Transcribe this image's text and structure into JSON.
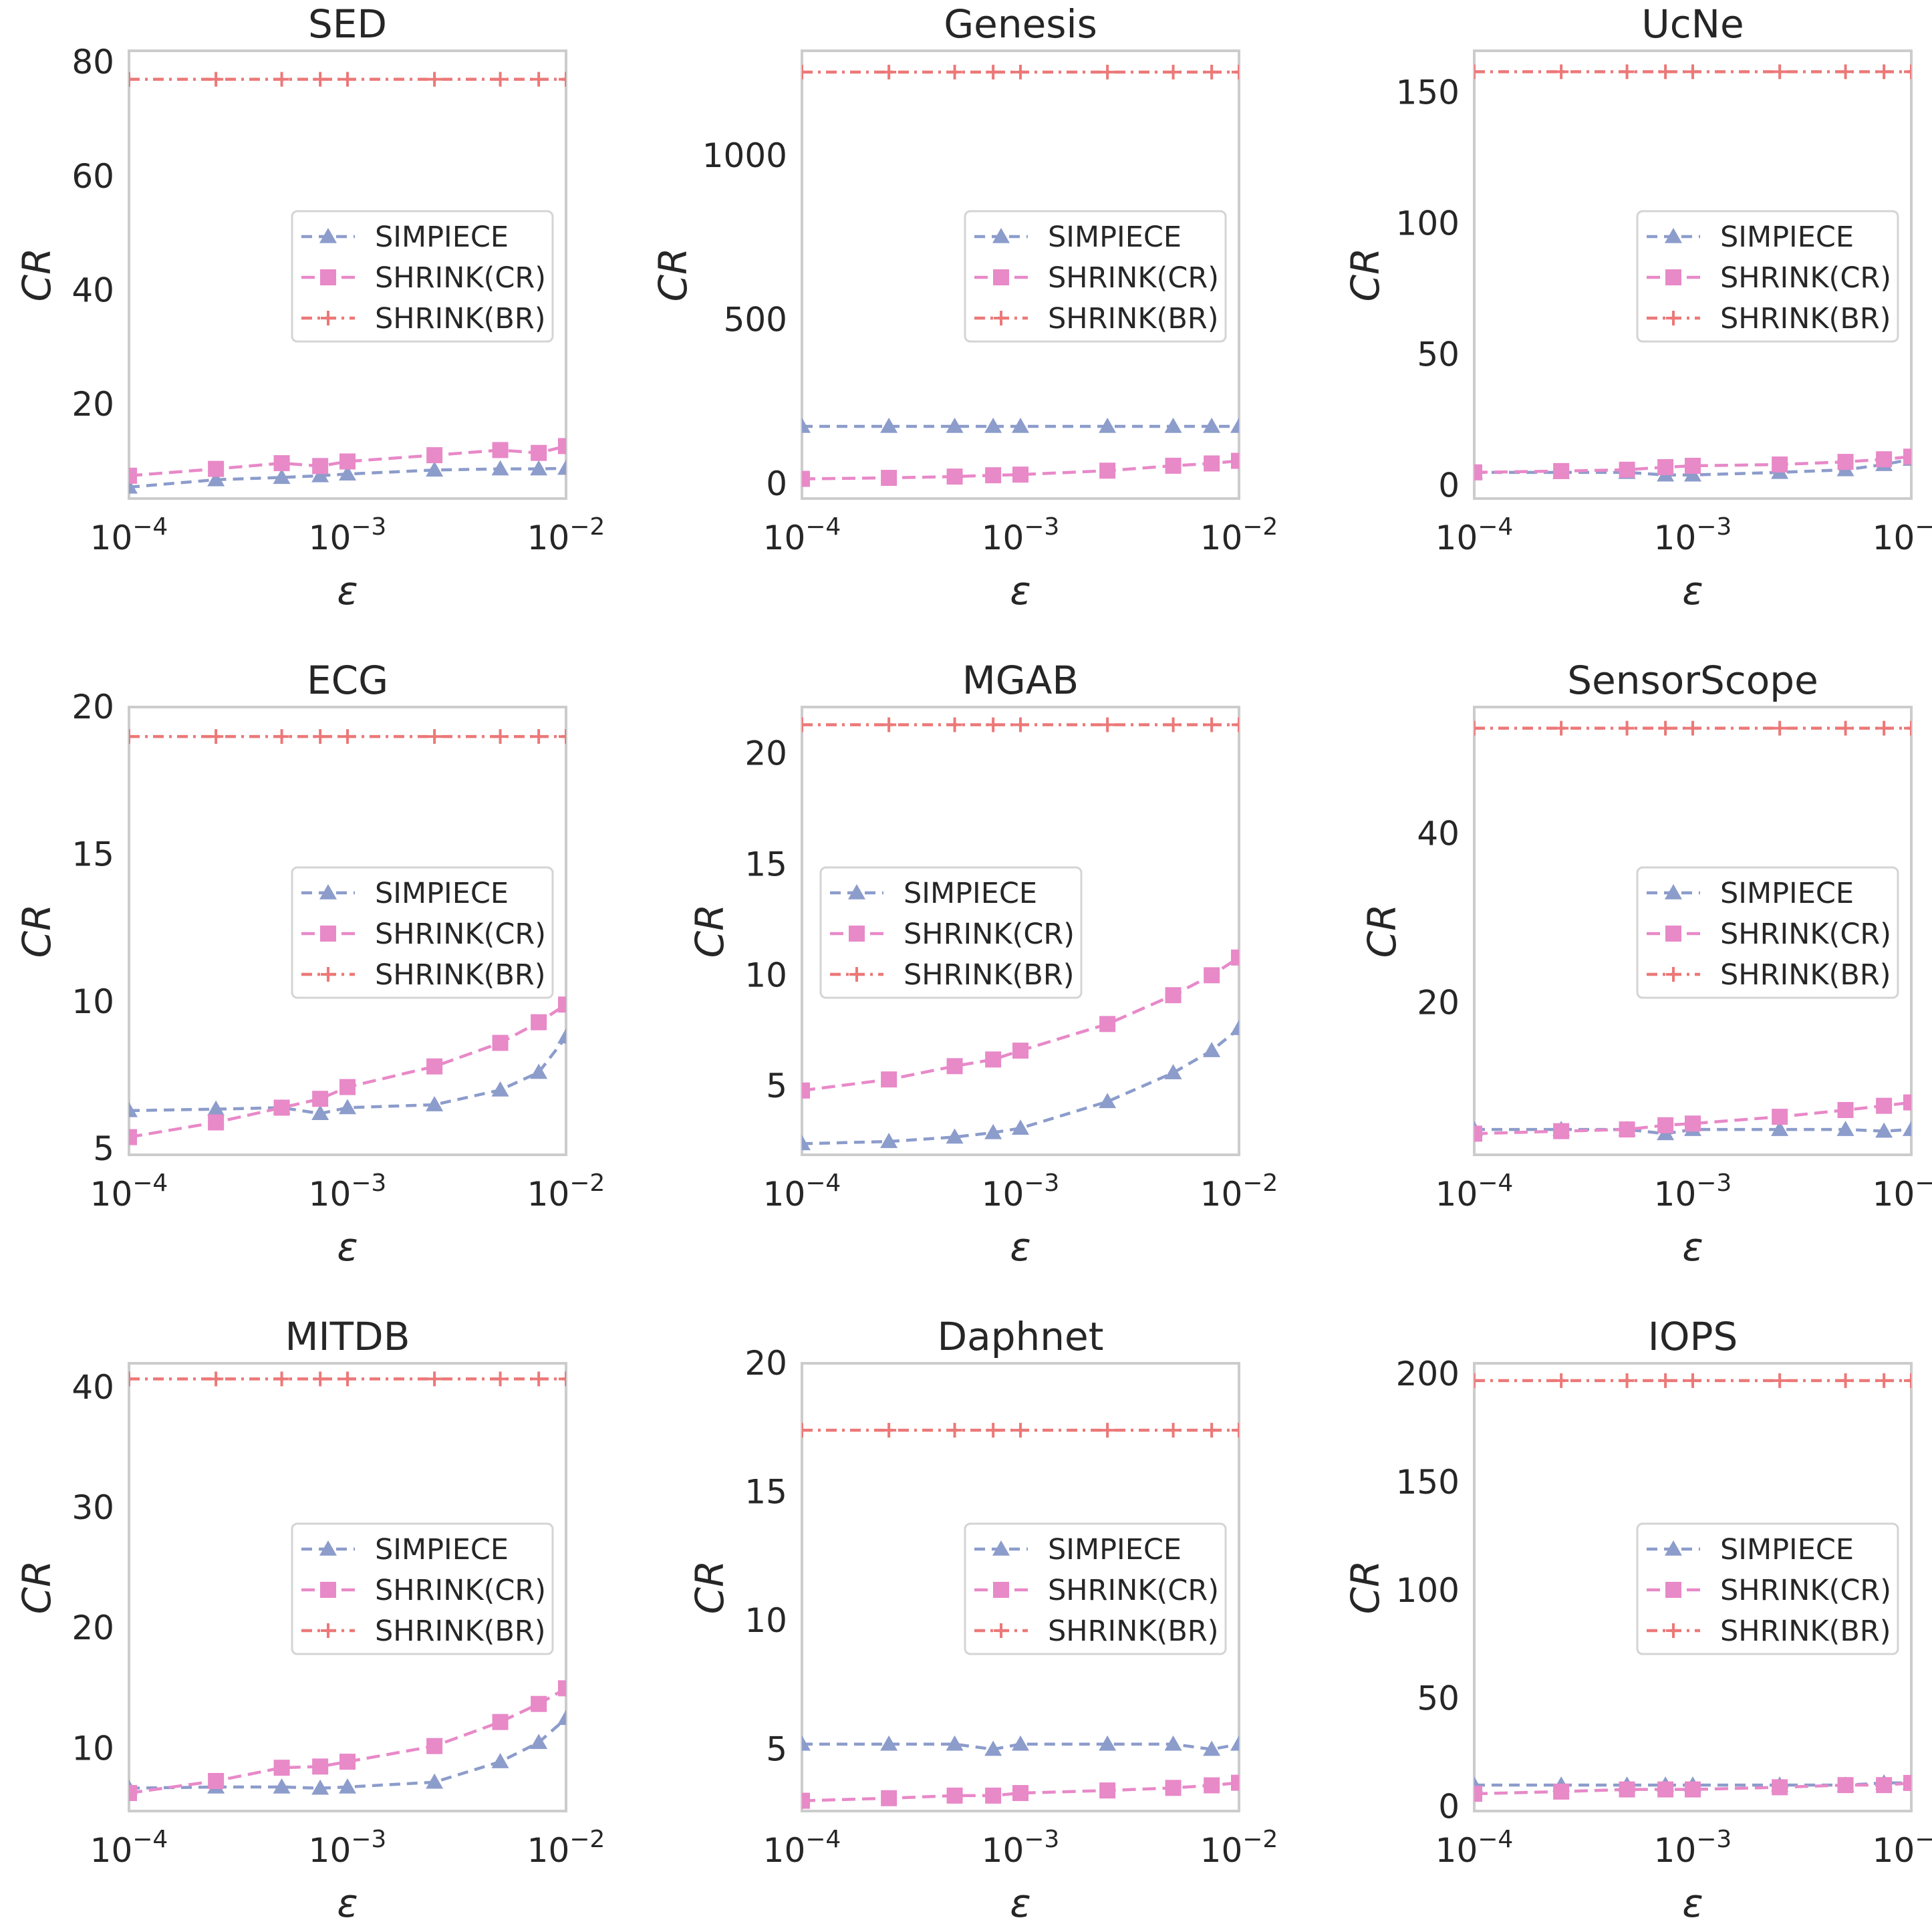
{
  "colors": {
    "simpiece": "#8c9ccb",
    "shrink_cr": "#e889c8",
    "shrink_br": "#ec7878",
    "frame": "#cccccc"
  },
  "chart_data": [
    {
      "type": "line",
      "title": "SED",
      "xlabel": "ε",
      "ylabel": "CR",
      "xscale": "log",
      "xlim": [
        0.0001,
        0.01
      ],
      "ylim": [
        3.5,
        82
      ],
      "yticks": [
        20,
        40,
        60,
        80
      ],
      "ytick_labels": [
        "20",
        "40",
        "60",
        "80"
      ],
      "legend_position": "center-right",
      "x": [
        0.0001,
        0.00025,
        0.0005,
        0.00075,
        0.001,
        0.0025,
        0.005,
        0.0075,
        0.01
      ],
      "series": [
        {
          "name": "SIMPIECE",
          "marker": "triangle",
          "values": [
            5.5,
            6.8,
            7.2,
            7.5,
            7.8,
            8.5,
            8.7,
            8.7,
            8.8
          ]
        },
        {
          "name": "SHRINK(CR)",
          "marker": "square",
          "values": [
            7.5,
            8.7,
            9.7,
            9.2,
            10.0,
            11.1,
            12.0,
            11.5,
            12.7
          ]
        },
        {
          "name": "SHRINK(BR)",
          "marker": "plus",
          "values": [
            77,
            77,
            77,
            77,
            77,
            77,
            77,
            77,
            77
          ]
        }
      ]
    },
    {
      "type": "line",
      "title": "Genesis",
      "xlabel": "ε",
      "ylabel": "CR",
      "xscale": "log",
      "xlim": [
        0.0001,
        0.01
      ],
      "ylim": [
        -45,
        1320
      ],
      "yticks": [
        0,
        500,
        1000
      ],
      "ytick_labels": [
        "0",
        "500",
        "1000"
      ],
      "legend_position": "center-right",
      "x": [
        0.0001,
        0.00025,
        0.0005,
        0.00075,
        0.001,
        0.0025,
        0.005,
        0.0075,
        0.01
      ],
      "series": [
        {
          "name": "SIMPIECE",
          "marker": "triangle",
          "values": [
            175,
            175,
            175,
            175,
            175,
            175,
            175,
            175,
            175
          ]
        },
        {
          "name": "SHRINK(CR)",
          "marker": "square",
          "values": [
            15,
            18,
            22,
            26,
            28,
            40,
            55,
            62,
            70
          ]
        },
        {
          "name": "SHRINK(BR)",
          "marker": "plus",
          "values": [
            1255,
            1255,
            1255,
            1255,
            1255,
            1255,
            1255,
            1255,
            1255
          ]
        }
      ]
    },
    {
      "type": "line",
      "title": "UcNe",
      "xlabel": "ε",
      "ylabel": "CR",
      "xscale": "log",
      "xlim": [
        0.0001,
        0.01
      ],
      "ylim": [
        -5,
        166
      ],
      "yticks": [
        0,
        50,
        100,
        150
      ],
      "ytick_labels": [
        "0",
        "50",
        "100",
        "150"
      ],
      "legend_position": "center-right",
      "x": [
        0.0001,
        0.00025,
        0.0005,
        0.00075,
        0.001,
        0.0025,
        0.005,
        0.0075,
        0.01
      ],
      "series": [
        {
          "name": "SIMPIECE",
          "marker": "triangle",
          "values": [
            5,
            5,
            5,
            4,
            4,
            5,
            6,
            8,
            10
          ]
        },
        {
          "name": "SHRINK(CR)",
          "marker": "square",
          "values": [
            5,
            5.5,
            6,
            7,
            7.5,
            8,
            9,
            10,
            11
          ]
        },
        {
          "name": "SHRINK(BR)",
          "marker": "plus",
          "values": [
            158,
            158,
            158,
            158,
            158,
            158,
            158,
            158,
            158
          ]
        }
      ]
    },
    {
      "type": "line",
      "title": "ECG",
      "xlabel": "ε",
      "ylabel": "CR",
      "xscale": "log",
      "xlim": [
        0.0001,
        0.01
      ],
      "ylim": [
        4.8,
        20
      ],
      "yticks": [
        5,
        10,
        15,
        20
      ],
      "ytick_labels": [
        "5",
        "10",
        "15",
        "20"
      ],
      "legend_position": "center-right",
      "x": [
        0.0001,
        0.00025,
        0.0005,
        0.00075,
        0.001,
        0.0025,
        0.005,
        0.0075,
        0.01
      ],
      "series": [
        {
          "name": "SIMPIECE",
          "marker": "triangle",
          "values": [
            6.3,
            6.35,
            6.4,
            6.2,
            6.4,
            6.5,
            7.0,
            7.6,
            8.8
          ]
        },
        {
          "name": "SHRINK(CR)",
          "marker": "square",
          "values": [
            5.4,
            5.9,
            6.4,
            6.7,
            7.1,
            7.8,
            8.6,
            9.3,
            9.9
          ]
        },
        {
          "name": "SHRINK(BR)",
          "marker": "plus",
          "values": [
            19.0,
            19.0,
            19.0,
            19.0,
            19.0,
            19.0,
            19.0,
            19.0,
            19.0
          ]
        }
      ]
    },
    {
      "type": "line",
      "title": "MGAB",
      "xlabel": "ε",
      "ylabel": "CR",
      "xscale": "log",
      "xlim": [
        0.0001,
        0.01
      ],
      "ylim": [
        1.9,
        22.1
      ],
      "yticks": [
        5,
        10,
        15,
        20
      ],
      "ytick_labels": [
        "5",
        "10",
        "15",
        "20"
      ],
      "legend_position": "center-left",
      "x": [
        0.0001,
        0.00025,
        0.0005,
        0.00075,
        0.001,
        0.0025,
        0.005,
        0.0075,
        0.01
      ],
      "series": [
        {
          "name": "SIMPIECE",
          "marker": "triangle",
          "values": [
            2.4,
            2.5,
            2.7,
            2.9,
            3.1,
            4.3,
            5.6,
            6.6,
            7.6
          ]
        },
        {
          "name": "SHRINK(CR)",
          "marker": "square",
          "values": [
            4.8,
            5.3,
            5.9,
            6.2,
            6.6,
            7.8,
            9.1,
            10.0,
            10.8
          ]
        },
        {
          "name": "SHRINK(BR)",
          "marker": "plus",
          "values": [
            21.3,
            21.3,
            21.3,
            21.3,
            21.3,
            21.3,
            21.3,
            21.3,
            21.3
          ]
        }
      ]
    },
    {
      "type": "line",
      "title": "SensorScope",
      "xlabel": "ε",
      "ylabel": "CR",
      "xscale": "log",
      "xlim": [
        0.0001,
        0.01
      ],
      "ylim": [
        2,
        55
      ],
      "yticks": [
        20,
        40
      ],
      "ytick_labels": [
        "20",
        "40"
      ],
      "legend_position": "center-right",
      "x": [
        0.0001,
        0.00025,
        0.0005,
        0.00075,
        0.001,
        0.0025,
        0.005,
        0.0075,
        0.01
      ],
      "series": [
        {
          "name": "SIMPIECE",
          "marker": "triangle",
          "values": [
            5.0,
            5.0,
            5.0,
            4.5,
            5.0,
            5.0,
            5.0,
            4.8,
            5.0
          ]
        },
        {
          "name": "SHRINK(CR)",
          "marker": "square",
          "values": [
            4.5,
            4.8,
            5.0,
            5.5,
            5.7,
            6.5,
            7.3,
            7.8,
            8.2
          ]
        },
        {
          "name": "SHRINK(BR)",
          "marker": "plus",
          "values": [
            52.5,
            52.5,
            52.5,
            52.5,
            52.5,
            52.5,
            52.5,
            52.5,
            52.5
          ]
        }
      ]
    },
    {
      "type": "line",
      "title": "MITDB",
      "xlabel": "ε",
      "ylabel": "CR",
      "xscale": "log",
      "xlim": [
        0.0001,
        0.01
      ],
      "ylim": [
        4.8,
        42
      ],
      "yticks": [
        10,
        20,
        30,
        40
      ],
      "ytick_labels": [
        "10",
        "20",
        "30",
        "40"
      ],
      "legend_position": "center-right",
      "x": [
        0.0001,
        0.00025,
        0.0005,
        0.00075,
        0.001,
        0.0025,
        0.005,
        0.0075,
        0.01
      ],
      "series": [
        {
          "name": "SIMPIECE",
          "marker": "triangle",
          "values": [
            6.7,
            6.8,
            6.8,
            6.7,
            6.8,
            7.2,
            8.9,
            10.5,
            12.5
          ]
        },
        {
          "name": "SHRINK(CR)",
          "marker": "square",
          "values": [
            6.3,
            7.3,
            8.4,
            8.5,
            8.9,
            10.2,
            12.2,
            13.7,
            15.0
          ]
        },
        {
          "name": "SHRINK(BR)",
          "marker": "plus",
          "values": [
            40.7,
            40.7,
            40.7,
            40.7,
            40.7,
            40.7,
            40.7,
            40.7,
            40.7
          ]
        }
      ]
    },
    {
      "type": "line",
      "title": "Daphnet",
      "xlabel": "ε",
      "ylabel": "CR",
      "xscale": "log",
      "xlim": [
        0.0001,
        0.01
      ],
      "ylim": [
        2.6,
        20
      ],
      "yticks": [
        5,
        10,
        15,
        20
      ],
      "ytick_labels": [
        "5",
        "10",
        "15",
        "20"
      ],
      "legend_position": "center-right",
      "x": [
        0.0001,
        0.00025,
        0.0005,
        0.00075,
        0.001,
        0.0025,
        0.005,
        0.0075,
        0.01
      ],
      "series": [
        {
          "name": "SIMPIECE",
          "marker": "triangle",
          "values": [
            5.2,
            5.2,
            5.2,
            5.0,
            5.2,
            5.2,
            5.2,
            5.0,
            5.2
          ]
        },
        {
          "name": "SHRINK(CR)",
          "marker": "square",
          "values": [
            3.0,
            3.1,
            3.2,
            3.2,
            3.3,
            3.4,
            3.5,
            3.6,
            3.7
          ]
        },
        {
          "name": "SHRINK(BR)",
          "marker": "plus",
          "values": [
            17.4,
            17.4,
            17.4,
            17.4,
            17.4,
            17.4,
            17.4,
            17.4,
            17.4
          ]
        }
      ]
    },
    {
      "type": "line",
      "title": "IOPS",
      "xlabel": "ε",
      "ylabel": "CR",
      "xscale": "log",
      "xlim": [
        0.0001,
        0.01
      ],
      "ylim": [
        -2,
        205
      ],
      "yticks": [
        0,
        50,
        100,
        150,
        200
      ],
      "ytick_labels": [
        "0",
        "50",
        "100",
        "150",
        "200"
      ],
      "legend_position": "center-right",
      "x": [
        0.0001,
        0.00025,
        0.0005,
        0.00075,
        0.001,
        0.0025,
        0.005,
        0.0075,
        0.01
      ],
      "series": [
        {
          "name": "SIMPIECE",
          "marker": "triangle",
          "values": [
            10,
            10,
            10,
            10,
            10,
            10,
            10,
            11,
            11
          ]
        },
        {
          "name": "SHRINK(CR)",
          "marker": "square",
          "values": [
            6,
            7,
            8,
            8,
            8,
            9,
            10,
            10,
            11
          ]
        },
        {
          "name": "SHRINK(BR)",
          "marker": "plus",
          "values": [
            197,
            197,
            197,
            197,
            197,
            197,
            197,
            197,
            197
          ]
        }
      ]
    }
  ]
}
